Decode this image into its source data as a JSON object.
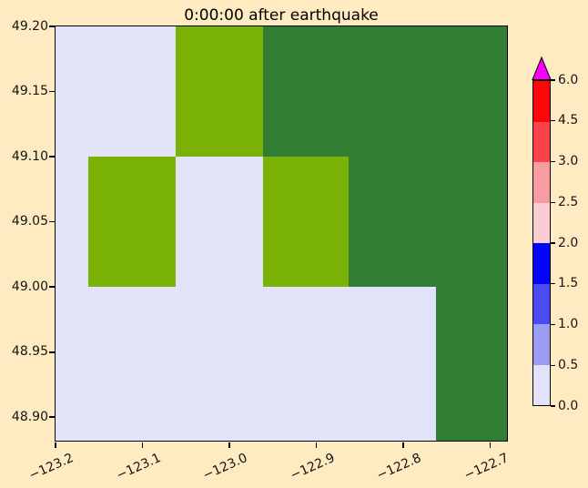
{
  "figure": {
    "background_color": "#FFEBC1"
  },
  "chart_data": {
    "type": "heatmap",
    "title": "0:00:00 after earthquake",
    "xlabel": "",
    "ylabel": "",
    "grid_on": false,
    "x_axis": {
      "tick_labels": [
        "−123.2",
        "−123.1",
        "−123.0",
        "−122.9",
        "−122.8",
        "−122.7"
      ],
      "tick_pct": [
        0,
        19.25,
        38.51,
        57.76,
        77.02,
        96.27
      ],
      "range": [
        -123.2,
        -122.68
      ],
      "label_rotation_deg": 24
    },
    "y_axis": {
      "tick_labels": [
        "49.20",
        "49.15",
        "49.10",
        "49.05",
        "49.00",
        "48.95",
        "48.90"
      ],
      "tick_pct": [
        0,
        15.74,
        31.43,
        47.17,
        62.86,
        78.68,
        94.29
      ],
      "range": [
        48.88,
        49.2
      ]
    },
    "grid": {
      "col_bounds_pct": [
        0,
        7.26,
        26.61,
        45.87,
        65.02,
        84.27,
        100
      ],
      "row_bounds_pct": [
        0,
        31.43,
        62.86,
        100
      ],
      "row_value_edges": [
        49.2,
        49.1,
        49.0,
        48.88
      ],
      "cells": [
        [
          "low",
          "low",
          "mid",
          "high",
          "high",
          "high"
        ],
        [
          "low",
          "mid",
          "low",
          "mid",
          "high",
          "high"
        ],
        [
          "low",
          "low",
          "low",
          "low",
          "low",
          "high"
        ]
      ],
      "palette": {
        "low": "#E2E3F8",
        "mid": "#7AB305",
        "high": "#317D34"
      },
      "palette_value_hint": {
        "low": "0.0–0.5"
      }
    },
    "colorbar": {
      "tick_labels": [
        "6.0",
        "4.5",
        "3.0",
        "2.5",
        "2.0",
        "1.5",
        "1.0",
        "0.5",
        "0.0"
      ],
      "segment_colors_top_to_bottom": [
        "#FA060B",
        "#FA4348",
        "#F89CA2",
        "#FACDD5",
        "#0404F8",
        "#4A4CF2",
        "#9B9DF5",
        "#E2E3F8"
      ],
      "over_color": "#FA00FA"
    }
  }
}
